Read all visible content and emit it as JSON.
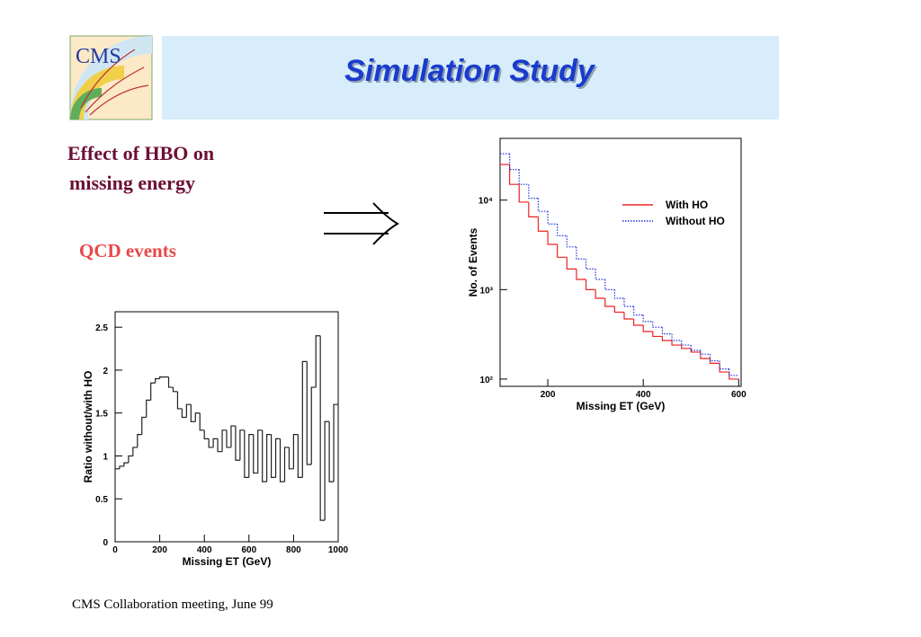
{
  "header": {
    "title": "Simulation Study",
    "logo": "CMS"
  },
  "notes": {
    "effect": [
      "Effect of HBO on",
      "missing energy"
    ],
    "events": "QCD events"
  },
  "footer": "CMS  Collaboration meeting, June 99",
  "chart_data": [
    {
      "type": "histogram",
      "xlabel": "Missing ET (GeV)",
      "ylabel": "No. of Events",
      "yscale": "log",
      "legend": "upper right",
      "xlim": [
        100,
        605
      ],
      "ylim": [
        83,
        49000
      ],
      "xticks": [
        200,
        400,
        600
      ],
      "yticks": [
        {
          "value": 100,
          "label": "10²"
        },
        {
          "value": 1000,
          "label": "10³"
        },
        {
          "value": 10000,
          "label": "10⁴"
        }
      ],
      "bins": [
        100,
        120,
        140,
        160,
        180,
        200,
        220,
        240,
        260,
        280,
        300,
        320,
        340,
        360,
        380,
        400,
        420,
        440,
        460,
        480,
        500,
        520,
        540,
        560,
        580,
        600
      ],
      "series": [
        {
          "name": "With HO",
          "color": "#ee2222",
          "style": "solid",
          "values": [
            25000,
            15000,
            9500,
            6500,
            4500,
            3200,
            2300,
            1700,
            1300,
            1000,
            800,
            650,
            560,
            470,
            400,
            340,
            300,
            270,
            240,
            220,
            200,
            170,
            150,
            120,
            100
          ]
        },
        {
          "name": "Without HO",
          "color": "#2233dd",
          "style": "dotted",
          "values": [
            33000,
            22000,
            15000,
            10500,
            7500,
            5400,
            4000,
            3000,
            2200,
            1700,
            1300,
            1000,
            800,
            650,
            520,
            440,
            380,
            320,
            270,
            240,
            210,
            190,
            160,
            130,
            110
          ]
        }
      ]
    },
    {
      "type": "histogram",
      "xlabel": "Missing ET (GeV)",
      "ylabel": "Ratio without/with HO",
      "yscale": "linear",
      "xlim": [
        0,
        1000
      ],
      "ylim": [
        0,
        2.68
      ],
      "xticks": [
        0,
        200,
        400,
        600,
        800,
        1000
      ],
      "yticks": [
        0,
        0.5,
        1,
        1.5,
        2,
        2.5
      ],
      "bins": [
        0,
        20,
        40,
        60,
        80,
        100,
        120,
        140,
        160,
        180,
        200,
        220,
        240,
        260,
        280,
        300,
        320,
        340,
        360,
        380,
        400,
        420,
        440,
        460,
        480,
        500,
        520,
        540,
        560,
        580,
        600,
        620,
        640,
        660,
        680,
        700,
        720,
        740,
        760,
        780,
        800,
        820,
        840,
        860,
        880,
        900,
        920,
        940,
        960,
        980,
        1000
      ],
      "series": [
        {
          "color": "#222222",
          "style": "solid",
          "values": [
            0.85,
            0.88,
            0.92,
            1.0,
            1.1,
            1.25,
            1.45,
            1.65,
            1.85,
            1.9,
            1.92,
            1.92,
            1.8,
            1.75,
            1.55,
            1.45,
            1.6,
            1.4,
            1.5,
            1.3,
            1.2,
            1.1,
            1.2,
            1.05,
            1.3,
            1.1,
            1.35,
            0.95,
            1.3,
            0.75,
            1.25,
            0.8,
            1.3,
            0.7,
            1.25,
            0.75,
            1.2,
            0.7,
            1.1,
            0.85,
            1.25,
            0.75,
            2.1,
            0.9,
            1.8,
            2.4,
            0.25,
            1.4,
            0.7,
            1.6
          ]
        }
      ]
    }
  ]
}
